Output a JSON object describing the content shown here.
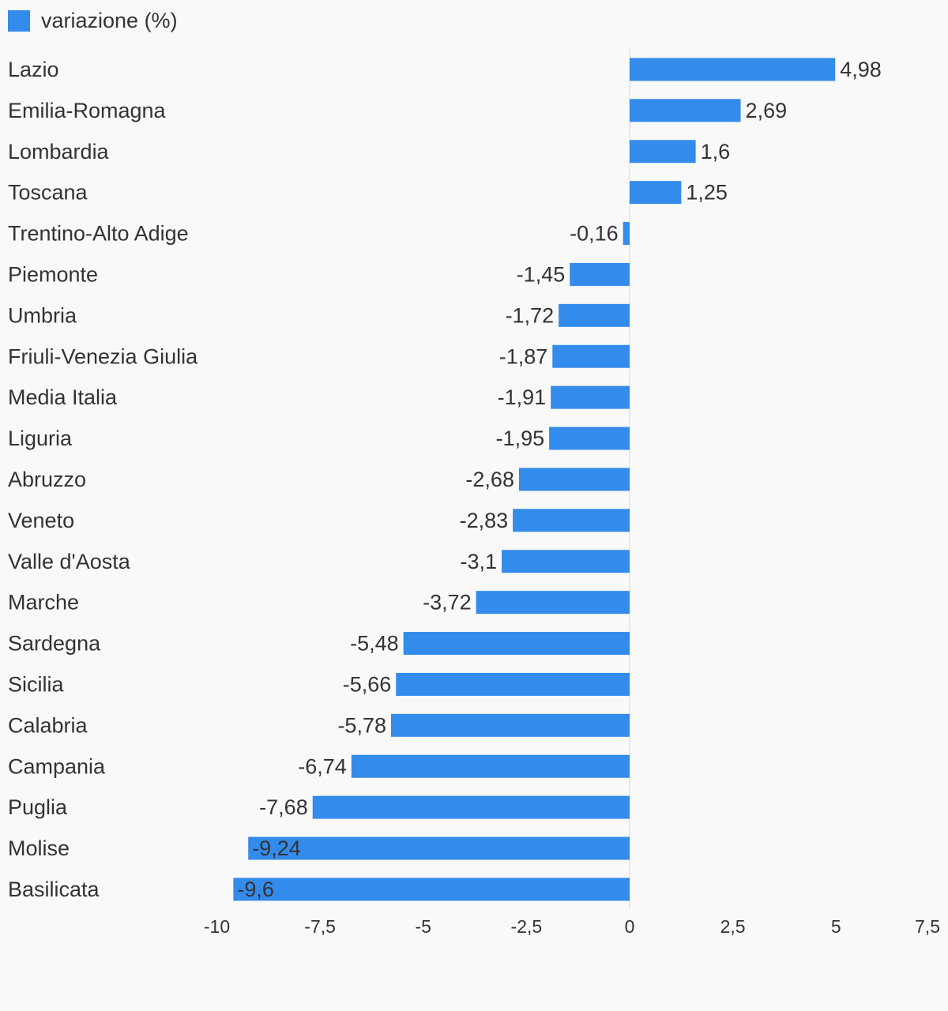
{
  "legend": {
    "label": "variazione (%)",
    "color": "#338beb"
  },
  "colors": {
    "bar": "#338beb",
    "background": "#f9f9f9",
    "text": "#333333",
    "axis_line": "#d9d9d9"
  },
  "chart_data": {
    "type": "bar",
    "orientation": "horizontal",
    "categories": [
      "Lazio",
      "Emilia-Romagna",
      "Lombardia",
      "Toscana",
      "Trentino-Alto Adige",
      "Piemonte",
      "Umbria",
      "Friuli-Venezia Giulia",
      "Media Italia",
      "Liguria",
      "Abruzzo",
      "Veneto",
      "Valle d'Aosta",
      "Marche",
      "Sardegna",
      "Sicilia",
      "Calabria",
      "Campania",
      "Puglia",
      "Molise",
      "Basilicata"
    ],
    "series": [
      {
        "name": "variazione (%)",
        "values": [
          4.98,
          2.69,
          1.6,
          1.25,
          -0.16,
          -1.45,
          -1.72,
          -1.87,
          -1.91,
          -1.95,
          -2.68,
          -2.83,
          -3.1,
          -3.72,
          -5.48,
          -5.66,
          -5.78,
          -6.74,
          -7.68,
          -9.24,
          -9.6
        ]
      }
    ],
    "data_labels": [
      "4,98",
      "2,69",
      "1,6",
      "1,25",
      "-0,16",
      "-1,45",
      "-1,72",
      "-1,87",
      "-1,91",
      "-1,95",
      "-2,68",
      "-2,83",
      "-3,1",
      "-3,72",
      "-5,48",
      "-5,66",
      "-5,78",
      "-6,74",
      "-7,68",
      "-9,24",
      "-9,6"
    ],
    "x_ticks": [
      -10,
      -7.5,
      -5,
      -2.5,
      0,
      2.5,
      5,
      7.5
    ],
    "x_tick_labels": [
      "-10",
      "-7,5",
      "-5",
      "-2,5",
      "0",
      "2,5",
      "5",
      "7,5"
    ],
    "xlim": [
      -10,
      7.5
    ],
    "grid": false,
    "legend_position": "top-left"
  }
}
